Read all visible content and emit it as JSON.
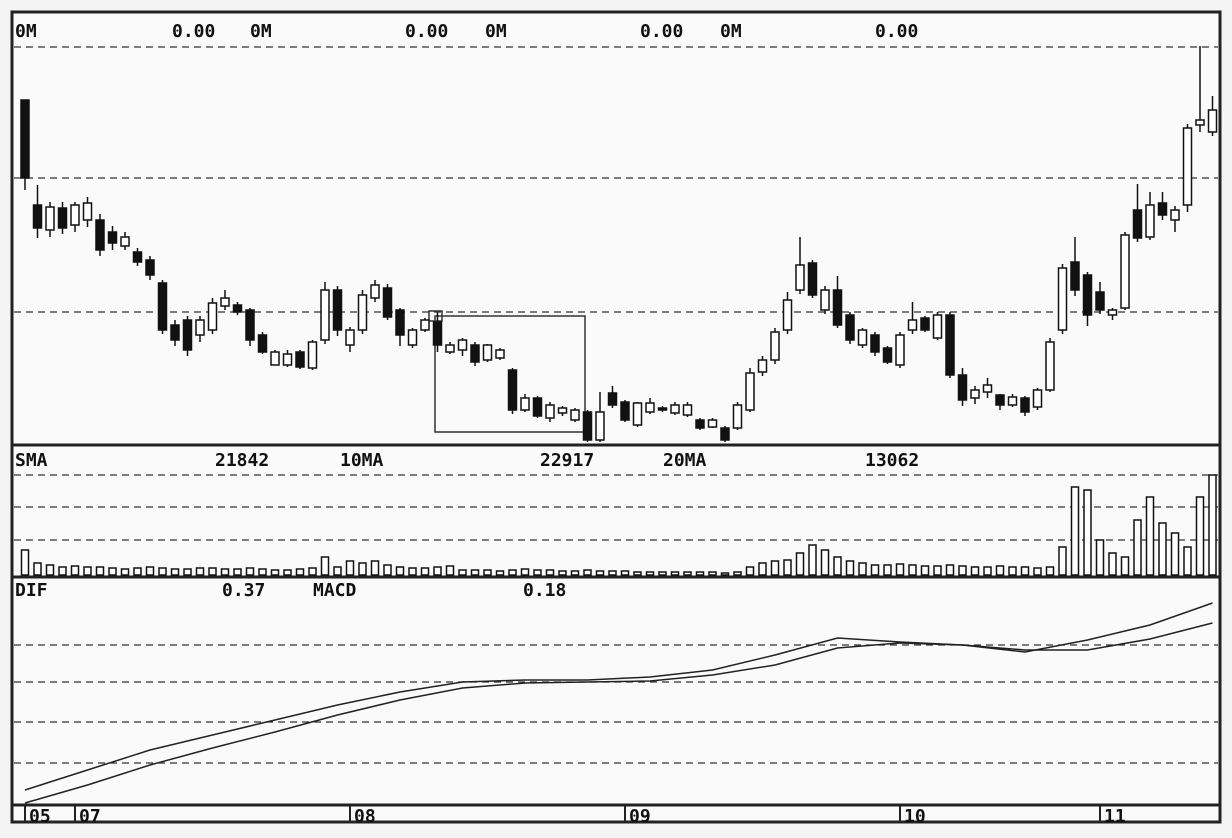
{
  "chart_data": [
    {
      "type": "candlestick",
      "header": [
        "0M",
        "0.00",
        "0M",
        "0.00",
        "0M",
        "0.00",
        "0M",
        "0.00"
      ],
      "up_color": "#ffffff",
      "down_color": "#111111",
      "open": [
        342,
        237,
        212,
        234,
        217,
        222,
        222,
        210,
        196,
        190,
        182,
        159,
        117,
        122,
        107,
        112,
        136,
        137,
        132,
        107,
        77,
        77,
        90,
        74,
        102,
        152,
        97,
        112,
        144,
        154,
        132,
        97,
        112,
        120,
        90,
        92,
        97,
        82,
        84,
        72,
        32,
        44,
        24,
        29,
        22,
        30,
        2,
        49,
        40,
        17,
        30,
        34,
        29,
        27,
        22,
        15,
        14,
        14,
        32,
        70,
        82,
        112,
        152,
        179,
        132,
        152,
        127,
        97,
        107,
        94,
        77,
        112,
        124,
        104,
        127,
        67,
        44,
        50,
        47,
        37,
        44,
        35,
        52,
        112,
        180,
        167,
        150,
        127,
        134,
        232,
        205,
        239,
        222,
        237,
        317,
        310
      ],
      "high": [
        342,
        257,
        240,
        240,
        240,
        245,
        228,
        216,
        210,
        194,
        186,
        162,
        122,
        126,
        126,
        144,
        152,
        140,
        134,
        110,
        92,
        92,
        92,
        102,
        160,
        156,
        115,
        152,
        162,
        158,
        134,
        114,
        124,
        130,
        100,
        104,
        100,
        98,
        94,
        74,
        48,
        46,
        40,
        36,
        34,
        32,
        50,
        56,
        42,
        40,
        44,
        36,
        40,
        40,
        24,
        24,
        16,
        40,
        74,
        86,
        114,
        150,
        205,
        182,
        156,
        166,
        130,
        114,
        110,
        96,
        110,
        140,
        126,
        130,
        130,
        74,
        56,
        64,
        48,
        48,
        46,
        54,
        104,
        178,
        205,
        170,
        160,
        134,
        210,
        258,
        250,
        250,
        236,
        318,
        396,
        346
      ],
      "low": [
        252,
        204,
        205,
        208,
        210,
        215,
        186,
        192,
        192,
        176,
        162,
        108,
        96,
        86,
        100,
        108,
        132,
        127,
        96,
        88,
        77,
        75,
        73,
        72,
        98,
        106,
        90,
        108,
        140,
        122,
        96,
        94,
        110,
        90,
        88,
        86,
        76,
        80,
        82,
        28,
        30,
        24,
        20,
        26,
        20,
        0,
        0,
        34,
        20,
        15,
        28,
        30,
        27,
        25,
        12,
        14,
        0,
        12,
        30,
        66,
        78,
        108,
        148,
        144,
        128,
        114,
        98,
        94,
        86,
        78,
        74,
        108,
        110,
        102,
        64,
        36,
        38,
        44,
        32,
        35,
        26,
        32,
        50,
        108,
        146,
        116,
        128,
        122,
        132,
        200,
        202,
        222,
        210,
        230,
        310,
        306
      ],
      "close": [
        264,
        214,
        235,
        214,
        237,
        239,
        192,
        199,
        205,
        180,
        167,
        112,
        102,
        92,
        122,
        139,
        144,
        130,
        102,
        90,
        90,
        88,
        75,
        100,
        152,
        112,
        112,
        147,
        157,
        125,
        107,
        112,
        122,
        97,
        97,
        102,
        80,
        97,
        92,
        32,
        44,
        26,
        37,
        34,
        32,
        2,
        30,
        37,
        22,
        39,
        39,
        32,
        37,
        37,
        14,
        22,
        2,
        37,
        69,
        82,
        110,
        142,
        177,
        147,
        152,
        117,
        102,
        112,
        90,
        80,
        107,
        122,
        112,
        127,
        67,
        42,
        52,
        57,
        37,
        45,
        30,
        52,
        100,
        174,
        152,
        127,
        132,
        132,
        207,
        204,
        237,
        227,
        232,
        314,
        322,
        332
      ],
      "ylim": [
        0,
        427
      ],
      "xticks": [
        {
          "value": 0,
          "label": "05"
        },
        {
          "value": 4,
          "label": "07"
        },
        {
          "value": 26,
          "label": "08"
        },
        {
          "value": 48,
          "label": "09"
        },
        {
          "value": 70,
          "label": "10"
        },
        {
          "value": 86,
          "label": "11"
        }
      ]
    },
    {
      "type": "bar",
      "header": [
        "SMA",
        "21842",
        "10MA",
        "22917",
        "20MA",
        "13062"
      ],
      "color": "#ffffff",
      "values": [
        25,
        12,
        10,
        8,
        9,
        8,
        8,
        7,
        6,
        7,
        8,
        7,
        6,
        6,
        7,
        7,
        6,
        6,
        7,
        6,
        5,
        5,
        6,
        7,
        18,
        8,
        14,
        12,
        14,
        10,
        8,
        7,
        7,
        8,
        9,
        5,
        5,
        5,
        4,
        5,
        6,
        5,
        5,
        4,
        4,
        5,
        4,
        4,
        4,
        3,
        3,
        3,
        3,
        3,
        3,
        3,
        2,
        3,
        8,
        12,
        14,
        15,
        22,
        30,
        25,
        18,
        14,
        12,
        10,
        10,
        11,
        10,
        9,
        9,
        10,
        9,
        8,
        8,
        9,
        8,
        8,
        7,
        8,
        28,
        88,
        85,
        35,
        22,
        18,
        55,
        78,
        52,
        42,
        28,
        78,
        100
      ],
      "ylim": [
        0,
        105
      ]
    },
    {
      "type": "line",
      "header": [
        "DIF",
        "0.37",
        "MACD",
        "0.18"
      ],
      "x": [
        0,
        5,
        10,
        15,
        20,
        25,
        30,
        35,
        40,
        45,
        50,
        55,
        60,
        65,
        70,
        75,
        80,
        85,
        90,
        95
      ],
      "series": [
        {
          "color": "#222222",
          "values": [
            -145,
            -125,
            -105,
            -90,
            -75,
            -60,
            -47,
            -37,
            -35,
            -35,
            -32,
            -25,
            -10,
            7,
            3,
            0,
            -7,
            5,
            20,
            42
          ]
        },
        {
          "color": "#222222",
          "values": [
            -158,
            -140,
            -120,
            -103,
            -87,
            -70,
            -55,
            -43,
            -38,
            -37,
            -36,
            -30,
            -20,
            -3,
            2,
            0,
            -5,
            -5,
            6,
            22
          ]
        }
      ],
      "ylim": [
        -160,
        60
      ]
    }
  ]
}
